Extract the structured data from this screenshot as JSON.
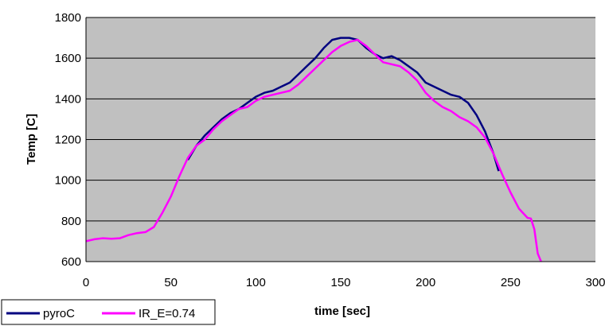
{
  "chart_data": {
    "type": "line",
    "title": "",
    "xlabel": "time [sec]",
    "ylabel": "Temp [C]",
    "xlim": [
      0,
      300
    ],
    "ylim": [
      600,
      1800
    ],
    "xticks": [
      "0",
      "50",
      "100",
      "150",
      "200",
      "250",
      "300"
    ],
    "yticks": [
      "600",
      "800",
      "1000",
      "1200",
      "1400",
      "1600",
      "1800"
    ],
    "grid": true,
    "legend_position": "bottom-left",
    "plot_background": "#c0c0c0",
    "series": [
      {
        "name": "pyroC",
        "color": "#000080",
        "x": [
          60,
          65,
          70,
          75,
          80,
          85,
          90,
          95,
          100,
          105,
          110,
          115,
          120,
          125,
          130,
          135,
          140,
          145,
          150,
          155,
          160,
          165,
          170,
          175,
          180,
          185,
          190,
          195,
          200,
          205,
          210,
          215,
          220,
          225,
          230,
          235,
          240,
          243
        ],
        "y": [
          1100,
          1170,
          1220,
          1260,
          1300,
          1330,
          1350,
          1380,
          1410,
          1430,
          1440,
          1460,
          1480,
          1520,
          1560,
          1600,
          1650,
          1690,
          1700,
          1700,
          1690,
          1650,
          1620,
          1600,
          1610,
          1590,
          1560,
          1530,
          1480,
          1460,
          1440,
          1420,
          1410,
          1380,
          1320,
          1240,
          1130,
          1045
        ]
      },
      {
        "name": "IR_E=0.74",
        "color": "#ff00ff",
        "x": [
          0,
          5,
          10,
          15,
          20,
          25,
          30,
          35,
          40,
          45,
          50,
          55,
          60,
          65,
          70,
          75,
          80,
          85,
          90,
          95,
          100,
          105,
          110,
          115,
          120,
          125,
          130,
          135,
          140,
          145,
          150,
          155,
          160,
          165,
          170,
          175,
          180,
          185,
          190,
          195,
          200,
          205,
          210,
          215,
          220,
          225,
          230,
          235,
          240,
          245,
          250,
          255,
          260,
          262,
          264,
          266,
          268
        ],
        "y": [
          700,
          710,
          715,
          712,
          715,
          730,
          740,
          745,
          770,
          840,
          920,
          1020,
          1110,
          1170,
          1200,
          1250,
          1290,
          1320,
          1350,
          1360,
          1390,
          1410,
          1420,
          1430,
          1440,
          1470,
          1510,
          1550,
          1590,
          1630,
          1660,
          1680,
          1690,
          1660,
          1620,
          1580,
          1570,
          1560,
          1530,
          1490,
          1430,
          1390,
          1360,
          1340,
          1310,
          1290,
          1260,
          1210,
          1130,
          1030,
          940,
          860,
          815,
          812,
          760,
          640,
          600
        ]
      }
    ]
  }
}
